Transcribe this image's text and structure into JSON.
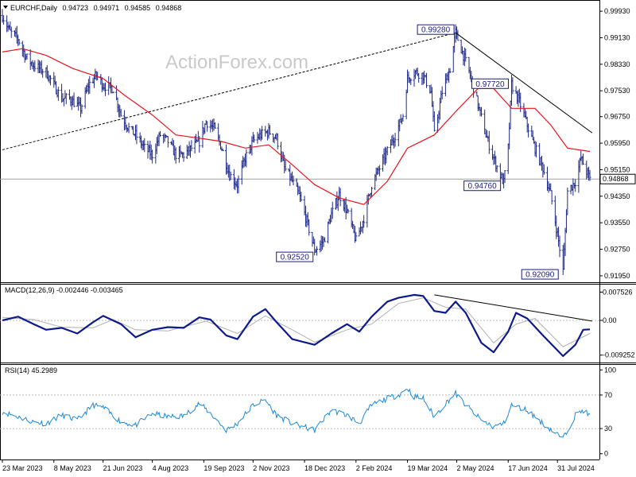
{
  "header": {
    "symbol": "EURCHF,Daily",
    "open": "0.94723",
    "high": "0.94971",
    "low": "0.94585",
    "close": "0.94868"
  },
  "watermark": "ActionForex.com",
  "colors": {
    "price_bars": "#1f2a8a",
    "ma": "#e8141b",
    "macd": "#0d1a8c",
    "signal": "#b0b0b0",
    "rsi": "#1c8ad8",
    "trendline": "#000000"
  },
  "chart_data": [
    {
      "type": "ohlc",
      "title": "EURCHF,Daily",
      "ylim": [
        0.9178,
        1.0022
      ],
      "yticks": [
        "0.99930",
        "0.99130",
        "0.98330",
        "0.97530",
        "0.96750",
        "0.95950",
        "0.95150",
        "0.94350",
        "0.93550",
        "0.92750",
        "0.91950"
      ],
      "last_price": "0.94868",
      "level_labels": [
        {
          "text": "0.99280",
          "date": "2024-05-01",
          "value": 0.9928
        },
        {
          "text": "0.97720",
          "date": "2024-06-20",
          "value": 0.9772
        },
        {
          "text": "0.94760",
          "date": "2024-06-13",
          "value": 0.9476
        },
        {
          "text": "0.92520",
          "date": "2023-12-27",
          "value": 0.9252
        },
        {
          "text": "0.92090",
          "date": "2024-08-05",
          "value": 0.9209
        }
      ],
      "price_path": [
        [
          "2023-03-23",
          0.998
        ],
        [
          "2023-03-30",
          0.993
        ],
        [
          "2023-04-06",
          0.991
        ],
        [
          "2023-04-13",
          0.9855
        ],
        [
          "2023-04-20",
          0.983
        ],
        [
          "2023-05-01",
          0.981
        ],
        [
          "2023-05-08",
          0.977
        ],
        [
          "2023-05-15",
          0.973
        ],
        [
          "2023-05-22",
          0.973
        ],
        [
          "2023-06-01",
          0.97
        ],
        [
          "2023-06-08",
          0.977
        ],
        [
          "2023-06-15",
          0.98
        ],
        [
          "2023-06-21",
          0.977
        ],
        [
          "2023-06-30",
          0.976
        ],
        [
          "2023-07-07",
          0.968
        ],
        [
          "2023-07-14",
          0.964
        ],
        [
          "2023-07-20",
          0.962
        ],
        [
          "2023-07-28",
          0.958
        ],
        [
          "2023-08-04",
          0.956
        ],
        [
          "2023-08-11",
          0.962
        ],
        [
          "2023-08-18",
          0.96
        ],
        [
          "2023-08-25",
          0.956
        ],
        [
          "2023-09-01",
          0.956
        ],
        [
          "2023-09-08",
          0.958
        ],
        [
          "2023-09-15",
          0.96
        ],
        [
          "2023-09-21",
          0.966
        ],
        [
          "2023-09-28",
          0.964
        ],
        [
          "2023-10-05",
          0.958
        ],
        [
          "2023-10-12",
          0.95
        ],
        [
          "2023-10-19",
          0.947
        ],
        [
          "2023-10-26",
          0.955
        ],
        [
          "2023-11-02",
          0.96
        ],
        [
          "2023-11-09",
          0.962
        ],
        [
          "2023-11-16",
          0.963
        ],
        [
          "2023-11-23",
          0.961
        ],
        [
          "2023-11-30",
          0.952
        ],
        [
          "2023-12-07",
          0.948
        ],
        [
          "2023-12-14",
          0.943
        ],
        [
          "2023-12-20",
          0.936
        ],
        [
          "2023-12-27",
          0.9272
        ],
        [
          "2024-01-04",
          0.93
        ],
        [
          "2024-01-11",
          0.938
        ],
        [
          "2024-01-18",
          0.944
        ],
        [
          "2024-01-25",
          0.939
        ],
        [
          "2024-02-02",
          0.93
        ],
        [
          "2024-02-09",
          0.937
        ],
        [
          "2024-02-16",
          0.947
        ],
        [
          "2024-02-23",
          0.952
        ],
        [
          "2024-03-01",
          0.957
        ],
        [
          "2024-03-08",
          0.962
        ],
        [
          "2024-03-15",
          0.968
        ],
        [
          "2024-03-19",
          0.979
        ],
        [
          "2024-03-26",
          0.981
        ],
        [
          "2024-04-02",
          0.98
        ],
        [
          "2024-04-09",
          0.975
        ],
        [
          "2024-04-12",
          0.962
        ],
        [
          "2024-04-19",
          0.975
        ],
        [
          "2024-04-26",
          0.982
        ],
        [
          "2024-05-01",
          0.9928
        ],
        [
          "2024-05-07",
          0.987
        ],
        [
          "2024-05-14",
          0.98
        ],
        [
          "2024-05-21",
          0.971
        ],
        [
          "2024-05-28",
          0.962
        ],
        [
          "2024-06-04",
          0.955
        ],
        [
          "2024-06-11",
          0.949
        ],
        [
          "2024-06-13",
          0.9476
        ],
        [
          "2024-06-17",
          0.958
        ],
        [
          "2024-06-20",
          0.9772
        ],
        [
          "2024-06-27",
          0.972
        ],
        [
          "2024-07-04",
          0.965
        ],
        [
          "2024-07-11",
          0.958
        ],
        [
          "2024-07-18",
          0.952
        ],
        [
          "2024-07-25",
          0.944
        ],
        [
          "2024-08-01",
          0.93
        ],
        [
          "2024-08-05",
          0.9209
        ],
        [
          "2024-08-09",
          0.945
        ],
        [
          "2024-08-16",
          0.948
        ],
        [
          "2024-08-21",
          0.955
        ],
        [
          "2024-08-26",
          0.951
        ],
        [
          "2024-08-29",
          0.9487
        ]
      ],
      "moving_average": [
        [
          "2023-03-23",
          0.987
        ],
        [
          "2023-04-10",
          0.988
        ],
        [
          "2023-05-01",
          0.986
        ],
        [
          "2023-05-25",
          0.982
        ],
        [
          "2023-06-21",
          0.979
        ],
        [
          "2023-07-10",
          0.974
        ],
        [
          "2023-08-04",
          0.968
        ],
        [
          "2023-08-25",
          0.962
        ],
        [
          "2023-09-15",
          0.961
        ],
        [
          "2023-10-05",
          0.96
        ],
        [
          "2023-10-26",
          0.958
        ],
        [
          "2023-11-16",
          0.959
        ],
        [
          "2023-12-07",
          0.953
        ],
        [
          "2023-12-27",
          0.947
        ],
        [
          "2024-01-18",
          0.943
        ],
        [
          "2024-02-09",
          0.941
        ],
        [
          "2024-03-01",
          0.948
        ],
        [
          "2024-03-19",
          0.958
        ],
        [
          "2024-04-12",
          0.962
        ],
        [
          "2024-05-01",
          0.969
        ],
        [
          "2024-05-21",
          0.976
        ],
        [
          "2024-06-04",
          0.976
        ],
        [
          "2024-06-20",
          0.97
        ],
        [
          "2024-07-11",
          0.97
        ],
        [
          "2024-07-25",
          0.965
        ],
        [
          "2024-08-09",
          0.958
        ],
        [
          "2024-08-29",
          0.957
        ]
      ],
      "trendline_support": [
        [
          "2023-03-23",
          0.9575
        ],
        [
          "2024-05-01",
          0.9928
        ]
      ],
      "trendline_resistance": [
        [
          "2024-05-01",
          0.9928
        ],
        [
          "2024-08-31",
          0.9626
        ]
      ],
      "x_tick_labels": [
        {
          "label": "23 Mar 2023",
          "date": "2023-03-23"
        },
        {
          "label": "8 May 2023",
          "date": "2023-05-08"
        },
        {
          "label": "21 Jun 2023",
          "date": "2023-06-21"
        },
        {
          "label": "4 Aug 2023",
          "date": "2023-08-04"
        },
        {
          "label": "19 Sep 2023",
          "date": "2023-09-19"
        },
        {
          "label": "2 Nov 2023",
          "date": "2023-11-02"
        },
        {
          "label": "18 Dec 2023",
          "date": "2023-12-18"
        },
        {
          "label": "2 Feb 2024",
          "date": "2024-02-02"
        },
        {
          "label": "19 Mar 2024",
          "date": "2024-03-19"
        },
        {
          "label": "2 May 2024",
          "date": "2024-05-02"
        },
        {
          "label": "17 Jun 2024",
          "date": "2024-06-17"
        },
        {
          "label": "31 Jul 2024",
          "date": "2024-07-31"
        }
      ]
    },
    {
      "type": "line",
      "title": "MACD(12,26,9) -0.002446 -0.003465",
      "ylim": [
        -0.0108,
        0.0091
      ],
      "yticks": [
        "0.007526",
        "0.00",
        "-0.009252"
      ],
      "series": [
        {
          "name": "MACD",
          "values": [
            [
              "2023-03-23",
              0.0
            ],
            [
              "2023-04-06",
              0.001
            ],
            [
              "2023-04-20",
              -0.001
            ],
            [
              "2023-05-01",
              -0.0025
            ],
            [
              "2023-05-15",
              -0.002
            ],
            [
              "2023-05-29",
              -0.0035
            ],
            [
              "2023-06-12",
              -0.0005
            ],
            [
              "2023-06-21",
              0.0012
            ],
            [
              "2023-07-07",
              -0.001
            ],
            [
              "2023-07-20",
              -0.0045
            ],
            [
              "2023-08-04",
              -0.0025
            ],
            [
              "2023-08-18",
              -0.0018
            ],
            [
              "2023-09-01",
              -0.002
            ],
            [
              "2023-09-15",
              0.0008
            ],
            [
              "2023-09-25",
              0.0002
            ],
            [
              "2023-10-09",
              -0.004
            ],
            [
              "2023-10-19",
              -0.005
            ],
            [
              "2023-11-02",
              0.001
            ],
            [
              "2023-11-13",
              0.003
            ],
            [
              "2023-11-23",
              -0.0005
            ],
            [
              "2023-12-07",
              -0.005
            ],
            [
              "2023-12-27",
              -0.0065
            ],
            [
              "2024-01-11",
              -0.0035
            ],
            [
              "2024-01-25",
              -0.001
            ],
            [
              "2024-02-05",
              -0.003
            ],
            [
              "2024-02-16",
              0.001
            ],
            [
              "2024-03-01",
              0.005
            ],
            [
              "2024-03-11",
              0.006
            ],
            [
              "2024-03-25",
              0.0068
            ],
            [
              "2024-04-02",
              0.0065
            ],
            [
              "2024-04-12",
              0.0025
            ],
            [
              "2024-04-22",
              0.002
            ],
            [
              "2024-05-01",
              0.005
            ],
            [
              "2024-05-10",
              0.002
            ],
            [
              "2024-05-24",
              -0.006
            ],
            [
              "2024-06-04",
              -0.0085
            ],
            [
              "2024-06-17",
              -0.003
            ],
            [
              "2024-06-24",
              0.002
            ],
            [
              "2024-07-04",
              0.0005
            ],
            [
              "2024-07-18",
              -0.004
            ],
            [
              "2024-08-05",
              -0.0095
            ],
            [
              "2024-08-16",
              -0.0065
            ],
            [
              "2024-08-23",
              -0.0025
            ],
            [
              "2024-08-29",
              -0.0024
            ]
          ]
        },
        {
          "name": "Signal",
          "values": [
            [
              "2023-03-23",
              0.0008
            ],
            [
              "2023-04-20",
              0.0002
            ],
            [
              "2023-05-15",
              -0.0018
            ],
            [
              "2023-06-12",
              -0.002
            ],
            [
              "2023-06-30",
              0.0002
            ],
            [
              "2023-07-20",
              -0.0025
            ],
            [
              "2023-08-18",
              -0.0028
            ],
            [
              "2023-09-21",
              -0.0002
            ],
            [
              "2023-10-19",
              -0.0035
            ],
            [
              "2023-11-13",
              0.0012
            ],
            [
              "2023-12-07",
              -0.0025
            ],
            [
              "2023-12-27",
              -0.0058
            ],
            [
              "2024-01-25",
              -0.0025
            ],
            [
              "2024-02-16",
              -0.001
            ],
            [
              "2024-03-11",
              0.0045
            ],
            [
              "2024-04-02",
              0.006
            ],
            [
              "2024-04-22",
              0.0035
            ],
            [
              "2024-05-10",
              0.003
            ],
            [
              "2024-06-04",
              -0.006
            ],
            [
              "2024-06-24",
              -0.001
            ],
            [
              "2024-07-11",
              0.0005
            ],
            [
              "2024-08-05",
              -0.007
            ],
            [
              "2024-08-29",
              -0.0035
            ]
          ]
        }
      ],
      "trendline": [
        [
          "2024-04-12",
          0.0068
        ],
        [
          "2024-08-31",
          -0.0002
        ]
      ]
    },
    {
      "type": "line",
      "title": "RSI(14) 45.2989",
      "ylim": [
        -5,
        105
      ],
      "yticks": [
        "100",
        "70",
        "30",
        "0"
      ],
      "levels": [
        70,
        30
      ],
      "series": [
        {
          "name": "RSI",
          "values": [
            [
              "2023-03-23",
              50
            ],
            [
              "2023-04-06",
              44
            ],
            [
              "2023-04-20",
              38
            ],
            [
              "2023-05-01",
              36
            ],
            [
              "2023-05-15",
              46
            ],
            [
              "2023-05-29",
              40
            ],
            [
              "2023-06-12",
              58
            ],
            [
              "2023-06-21",
              55
            ],
            [
              "2023-07-07",
              38
            ],
            [
              "2023-07-20",
              34
            ],
            [
              "2023-08-04",
              48
            ],
            [
              "2023-08-18",
              44
            ],
            [
              "2023-09-01",
              45
            ],
            [
              "2023-09-15",
              60
            ],
            [
              "2023-09-25",
              48
            ],
            [
              "2023-10-09",
              28
            ],
            [
              "2023-10-19",
              36
            ],
            [
              "2023-11-02",
              58
            ],
            [
              "2023-11-13",
              64
            ],
            [
              "2023-11-23",
              46
            ],
            [
              "2023-12-07",
              36
            ],
            [
              "2023-12-27",
              28
            ],
            [
              "2024-01-11",
              52
            ],
            [
              "2024-01-25",
              46
            ],
            [
              "2024-02-05",
              36
            ],
            [
              "2024-02-16",
              58
            ],
            [
              "2024-03-01",
              66
            ],
            [
              "2024-03-11",
              70
            ],
            [
              "2024-03-19",
              78
            ],
            [
              "2024-03-25",
              68
            ],
            [
              "2024-04-02",
              66
            ],
            [
              "2024-04-12",
              44
            ],
            [
              "2024-04-22",
              60
            ],
            [
              "2024-05-01",
              72
            ],
            [
              "2024-05-10",
              58
            ],
            [
              "2024-05-24",
              40
            ],
            [
              "2024-06-04",
              32
            ],
            [
              "2024-06-13",
              36
            ],
            [
              "2024-06-20",
              58
            ],
            [
              "2024-07-04",
              52
            ],
            [
              "2024-07-18",
              36
            ],
            [
              "2024-08-05",
              18
            ],
            [
              "2024-08-16",
              46
            ],
            [
              "2024-08-23",
              52
            ],
            [
              "2024-08-29",
              45
            ]
          ]
        }
      ]
    }
  ]
}
